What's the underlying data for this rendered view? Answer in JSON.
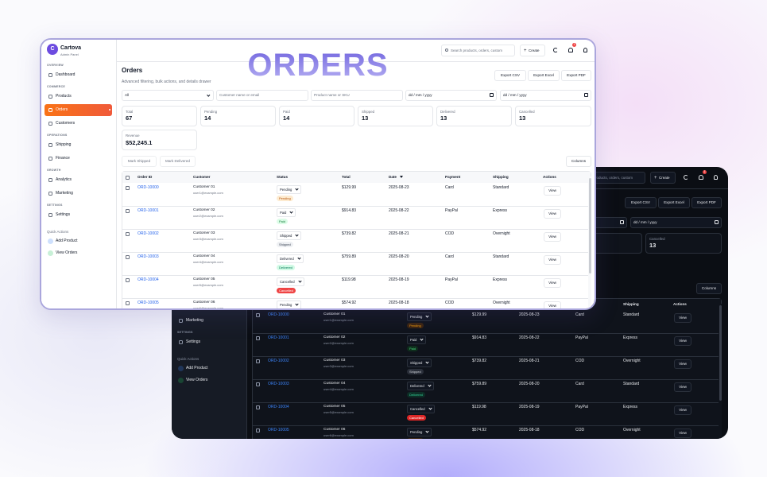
{
  "hero_title": "ORDERS",
  "brand": {
    "initial": "C",
    "name": "Cartova",
    "subtitle": "Admin Panel"
  },
  "topbar": {
    "search_placeholder": "Search products, orders, custom",
    "create": "Create",
    "notification_count": "1"
  },
  "nav": [
    {
      "section": "OVERVIEW",
      "items": [
        "Dashboard"
      ]
    },
    {
      "section": "COMMERCE",
      "items": [
        "Products",
        "Orders",
        "Customers"
      ]
    },
    {
      "section": "OPERATIONS",
      "items": [
        "Shipping",
        "Finance"
      ]
    },
    {
      "section": "GROWTH",
      "items": [
        "Analytics",
        "Marketing"
      ]
    },
    {
      "section": "SETTINGS",
      "items": [
        "Settings"
      ]
    }
  ],
  "quick_actions": {
    "title": "Quick Actions",
    "items": [
      "Add Product",
      "View Orders"
    ]
  },
  "page": {
    "title": "Orders",
    "subtitle": "Advanced filtering, bulk actions, and details drawer"
  },
  "exports": [
    "Export CSV",
    "Export Excel",
    "Export PDF"
  ],
  "filters": {
    "status": "All",
    "customer": "Customer name or email",
    "product": "Product name or SKU",
    "date_from": "dd / mm / yyyy",
    "date_to": "dd / mm / yyyy"
  },
  "stats": [
    {
      "label": "Total",
      "value": "67"
    },
    {
      "label": "Pending",
      "value": "14"
    },
    {
      "label": "Paid",
      "value": "14"
    },
    {
      "label": "Shipped",
      "value": "13"
    },
    {
      "label": "Delivered",
      "value": "13"
    },
    {
      "label": "Cancelled",
      "value": "13"
    },
    {
      "label": "Revenue",
      "value": "$52,245.1"
    }
  ],
  "bulk_actions": [
    "Mark Shipped",
    "Mark Delivered"
  ],
  "columns_button": "Columns",
  "table": {
    "headers": [
      "Order ID",
      "Customer",
      "Status",
      "Total",
      "Date",
      "Payment",
      "Shipping",
      "Actions"
    ],
    "rows": [
      {
        "id": "ORD-10000",
        "customer": "Customer 01",
        "email": "user1@example.com",
        "status": "Pending",
        "total": "$129.99",
        "date": "2025-08-23",
        "payment": "Card",
        "shipping": "Standard",
        "action": "View"
      },
      {
        "id": "ORD-10001",
        "customer": "Customer 02",
        "email": "user2@example.com",
        "status": "Paid",
        "total": "$914.83",
        "date": "2025-08-22",
        "payment": "PayPal",
        "shipping": "Express",
        "action": "View"
      },
      {
        "id": "ORD-10002",
        "customer": "Customer 03",
        "email": "user3@example.com",
        "status": "Shipped",
        "total": "$739.82",
        "date": "2025-08-21",
        "payment": "COD",
        "shipping": "Overnight",
        "action": "View"
      },
      {
        "id": "ORD-10003",
        "customer": "Customer 04",
        "email": "user4@example.com",
        "status": "Delivered",
        "total": "$759.89",
        "date": "2025-08-20",
        "payment": "Card",
        "shipping": "Standard",
        "action": "View"
      },
      {
        "id": "ORD-10004",
        "customer": "Customer 05",
        "email": "user5@example.com",
        "status": "Cancelled",
        "total": "$119.98",
        "date": "2025-08-19",
        "payment": "PayPal",
        "shipping": "Express",
        "action": "View"
      },
      {
        "id": "ORD-10005",
        "customer": "Customer 06",
        "email": "user6@example.com",
        "status": "Pending",
        "total": "$574.92",
        "date": "2025-08-18",
        "payment": "COD",
        "shipping": "Overnight",
        "action": "View"
      }
    ]
  }
}
